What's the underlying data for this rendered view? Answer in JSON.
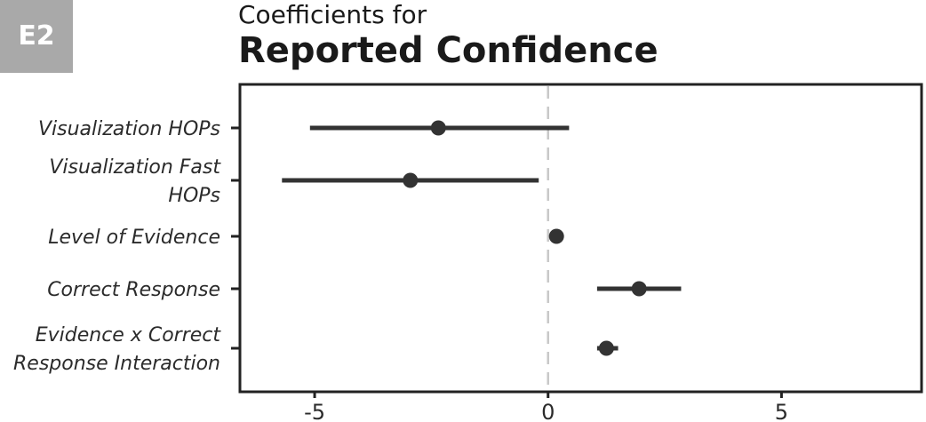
{
  "badge": "E2",
  "chart_data": {
    "type": "forest",
    "title": "Coefficients for",
    "subtitle": "Reported Confidence",
    "xlabel": "",
    "ylabel": "",
    "xlim": [
      -6.6,
      8
    ],
    "x_ticks": [
      -5,
      0,
      5
    ],
    "x_tick_labels": [
      "-5",
      "0",
      "5"
    ],
    "reference_line": 0,
    "grid": false,
    "categories": [
      {
        "label_lines": [
          "Visualization HOPs"
        ],
        "estimate": -2.35,
        "low": -5.1,
        "high": 0.45
      },
      {
        "label_lines": [
          "Visualization Fast",
          "HOPs"
        ],
        "estimate": -2.95,
        "low": -5.7,
        "high": -0.2
      },
      {
        "label_lines": [
          "Level of Evidence"
        ],
        "estimate": 0.18,
        "low": 0.05,
        "high": 0.32
      },
      {
        "label_lines": [
          "Correct Response"
        ],
        "estimate": 1.95,
        "low": 1.05,
        "high": 2.85
      },
      {
        "label_lines": [
          "Evidence x Correct",
          "Response Interaction"
        ],
        "estimate": 1.25,
        "low": 1.05,
        "high": 1.5
      }
    ],
    "colors": {
      "mark": "#333333",
      "reference": "#c8c8c8",
      "frame": "#222222"
    }
  }
}
